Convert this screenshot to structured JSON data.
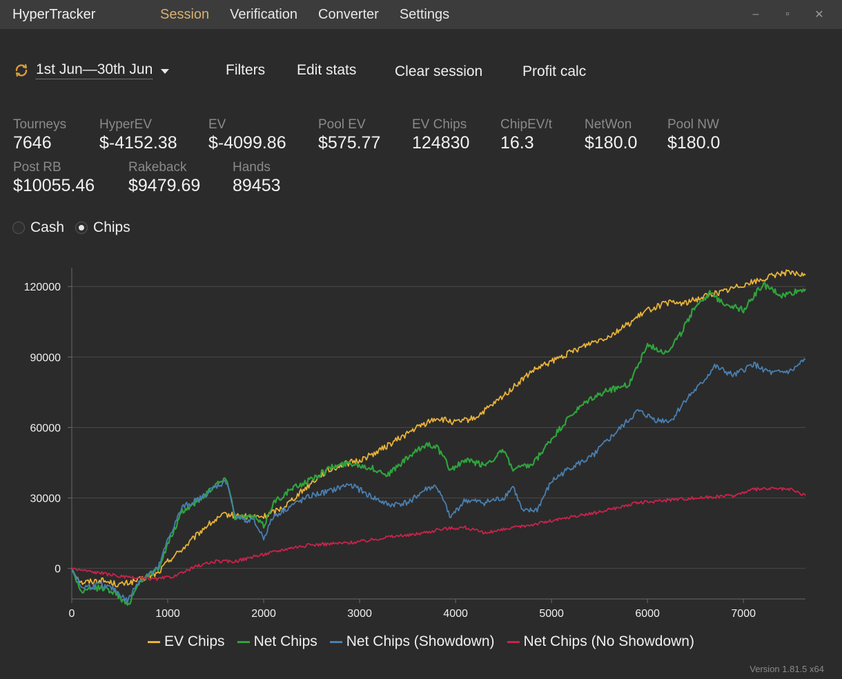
{
  "app": {
    "title": "HyperTracker",
    "menu": [
      "Session",
      "Verification",
      "Converter",
      "Settings"
    ],
    "active_menu": "Session",
    "window_controls": {
      "minimize": "–",
      "maximize": "▫",
      "close": "✕"
    }
  },
  "toolbar": {
    "date_range": "1st Jun—30th Jun",
    "filters": "Filters",
    "edit_stats": "Edit stats",
    "clear_session": "Clear session",
    "profit_calc": "Profit calc"
  },
  "stats": {
    "row1": [
      {
        "label": "Tourneys",
        "value": "7646"
      },
      {
        "label": "HyperEV",
        "value": "$-4152.38"
      },
      {
        "label": "EV",
        "value": "$-4099.86"
      },
      {
        "label": "Pool EV",
        "value": "$575.77"
      },
      {
        "label": "EV Chips",
        "value": "124830"
      },
      {
        "label": "ChipEV/t",
        "value": "16.3"
      },
      {
        "label": "NetWon",
        "value": "$180.0"
      },
      {
        "label": "Pool NW",
        "value": "$180.0"
      }
    ],
    "row2": [
      {
        "label": "Post RB",
        "value": "$10055.46"
      },
      {
        "label": "Rakeback",
        "value": "$9479.69"
      },
      {
        "label": "Hands",
        "value": "89453"
      }
    ]
  },
  "mode": {
    "options": [
      "Cash",
      "Chips"
    ],
    "selected": "Chips"
  },
  "chart_data": {
    "type": "line",
    "xlim": [
      0,
      7646
    ],
    "ylim": [
      -13000,
      128000
    ],
    "x_ticks": [
      0,
      1000,
      2000,
      3000,
      4000,
      5000,
      6000,
      7000
    ],
    "y_ticks": [
      0,
      30000,
      60000,
      90000,
      120000
    ],
    "x_tick_labels": [
      "0",
      "1000",
      "2000",
      "3000",
      "4000",
      "5000",
      "6000",
      "7000"
    ],
    "y_tick_labels": [
      "0",
      "30000",
      "60000",
      "90000",
      "120000"
    ],
    "grid": "horizontal",
    "legend_position": "bottom",
    "series": [
      {
        "name": "EV Chips",
        "color": "#e8b339",
        "points": [
          [
            0,
            0
          ],
          [
            100,
            -6000
          ],
          [
            300,
            -5000
          ],
          [
            500,
            -7000
          ],
          [
            700,
            -5000
          ],
          [
            900,
            -2000
          ],
          [
            1000,
            3000
          ],
          [
            1200,
            10000
          ],
          [
            1400,
            18000
          ],
          [
            1600,
            23000
          ],
          [
            1800,
            22000
          ],
          [
            2000,
            22000
          ],
          [
            2200,
            26000
          ],
          [
            2400,
            33000
          ],
          [
            2600,
            40000
          ],
          [
            2800,
            44000
          ],
          [
            3000,
            46000
          ],
          [
            3200,
            50000
          ],
          [
            3400,
            55000
          ],
          [
            3600,
            60000
          ],
          [
            3800,
            64000
          ],
          [
            4000,
            62000
          ],
          [
            4200,
            64000
          ],
          [
            4400,
            70000
          ],
          [
            4600,
            77000
          ],
          [
            4800,
            84000
          ],
          [
            5000,
            88000
          ],
          [
            5200,
            92000
          ],
          [
            5400,
            96000
          ],
          [
            5600,
            99000
          ],
          [
            5800,
            104000
          ],
          [
            6000,
            110000
          ],
          [
            6200,
            113000
          ],
          [
            6400,
            113000
          ],
          [
            6600,
            116000
          ],
          [
            6800,
            118000
          ],
          [
            7000,
            121000
          ],
          [
            7200,
            123000
          ],
          [
            7400,
            126000
          ],
          [
            7646,
            124830
          ]
        ]
      },
      {
        "name": "Net Chips",
        "color": "#2fa33c",
        "points": [
          [
            0,
            0
          ],
          [
            100,
            -10000
          ],
          [
            300,
            -8000
          ],
          [
            450,
            -10000
          ],
          [
            580,
            -16000
          ],
          [
            700,
            -6000
          ],
          [
            900,
            0
          ],
          [
            1000,
            10000
          ],
          [
            1150,
            24000
          ],
          [
            1350,
            30000
          ],
          [
            1500,
            36000
          ],
          [
            1620,
            38000
          ],
          [
            1700,
            22000
          ],
          [
            1900,
            22000
          ],
          [
            2000,
            18000
          ],
          [
            2100,
            28000
          ],
          [
            2300,
            34000
          ],
          [
            2500,
            38000
          ],
          [
            2700,
            43000
          ],
          [
            2900,
            45000
          ],
          [
            3100,
            43000
          ],
          [
            3300,
            40000
          ],
          [
            3500,
            47000
          ],
          [
            3700,
            53000
          ],
          [
            3800,
            52000
          ],
          [
            3950,
            42000
          ],
          [
            4100,
            46000
          ],
          [
            4300,
            44000
          ],
          [
            4500,
            50000
          ],
          [
            4600,
            42000
          ],
          [
            4800,
            44000
          ],
          [
            5000,
            55000
          ],
          [
            5200,
            65000
          ],
          [
            5400,
            72000
          ],
          [
            5600,
            76000
          ],
          [
            5800,
            78000
          ],
          [
            6000,
            95000
          ],
          [
            6200,
            92000
          ],
          [
            6350,
            100000
          ],
          [
            6500,
            112000
          ],
          [
            6650,
            117000
          ],
          [
            6800,
            113000
          ],
          [
            7000,
            110000
          ],
          [
            7200,
            121000
          ],
          [
            7400,
            116000
          ],
          [
            7646,
            119000
          ]
        ]
      },
      {
        "name": "Net Chips (Showdown)",
        "color": "#4a7fb0",
        "points": [
          [
            0,
            0
          ],
          [
            100,
            -8000
          ],
          [
            300,
            -7000
          ],
          [
            450,
            -9000
          ],
          [
            580,
            -14000
          ],
          [
            700,
            -5000
          ],
          [
            900,
            0
          ],
          [
            1000,
            12000
          ],
          [
            1150,
            26000
          ],
          [
            1350,
            30000
          ],
          [
            1500,
            35000
          ],
          [
            1620,
            37000
          ],
          [
            1700,
            22000
          ],
          [
            1900,
            20000
          ],
          [
            2000,
            13000
          ],
          [
            2100,
            22000
          ],
          [
            2300,
            27000
          ],
          [
            2500,
            31000
          ],
          [
            2700,
            33000
          ],
          [
            2900,
            36000
          ],
          [
            3100,
            31000
          ],
          [
            3300,
            27000
          ],
          [
            3500,
            28000
          ],
          [
            3700,
            34000
          ],
          [
            3800,
            35000
          ],
          [
            3950,
            22000
          ],
          [
            4100,
            29000
          ],
          [
            4300,
            28000
          ],
          [
            4500,
            30000
          ],
          [
            4600,
            35000
          ],
          [
            4700,
            24000
          ],
          [
            4850,
            25000
          ],
          [
            5000,
            37000
          ],
          [
            5200,
            43000
          ],
          [
            5400,
            47000
          ],
          [
            5600,
            55000
          ],
          [
            5800,
            63000
          ],
          [
            5900,
            67000
          ],
          [
            6100,
            63000
          ],
          [
            6250,
            63000
          ],
          [
            6400,
            72000
          ],
          [
            6550,
            78000
          ],
          [
            6700,
            86000
          ],
          [
            6900,
            82000
          ],
          [
            7100,
            87000
          ],
          [
            7300,
            83000
          ],
          [
            7500,
            84000
          ],
          [
            7646,
            89000
          ]
        ]
      },
      {
        "name": "Net Chips (No Showdown)",
        "color": "#c9234b",
        "points": [
          [
            0,
            0
          ],
          [
            300,
            -2000
          ],
          [
            600,
            -4000
          ],
          [
            900,
            -4500
          ],
          [
            1100,
            -3000
          ],
          [
            1300,
            1000
          ],
          [
            1500,
            3000
          ],
          [
            1700,
            3000
          ],
          [
            1900,
            5000
          ],
          [
            2100,
            7000
          ],
          [
            2300,
            9000
          ],
          [
            2500,
            10000
          ],
          [
            2700,
            10500
          ],
          [
            2900,
            11000
          ],
          [
            3100,
            12000
          ],
          [
            3300,
            13500
          ],
          [
            3500,
            14000
          ],
          [
            3700,
            15500
          ],
          [
            3900,
            17000
          ],
          [
            4100,
            17500
          ],
          [
            4300,
            15000
          ],
          [
            4500,
            16500
          ],
          [
            4700,
            18000
          ],
          [
            4900,
            19500
          ],
          [
            5100,
            21000
          ],
          [
            5300,
            22500
          ],
          [
            5500,
            24000
          ],
          [
            5700,
            26000
          ],
          [
            5900,
            28000
          ],
          [
            6100,
            28500
          ],
          [
            6300,
            29500
          ],
          [
            6500,
            30000
          ],
          [
            6700,
            30500
          ],
          [
            6900,
            31000
          ],
          [
            7100,
            33500
          ],
          [
            7300,
            34000
          ],
          [
            7500,
            33500
          ],
          [
            7646,
            31000
          ]
        ]
      }
    ]
  },
  "footer": {
    "version": "Version 1.81.5 x64"
  }
}
